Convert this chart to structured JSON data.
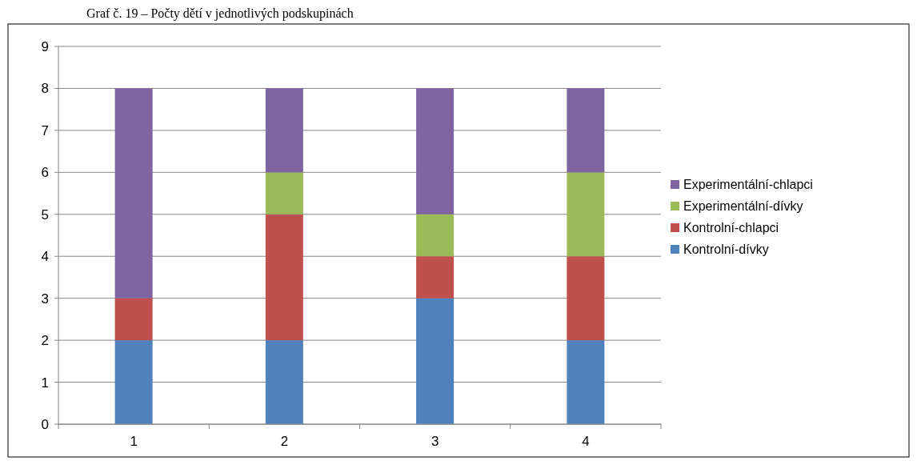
{
  "chart_data": {
    "type": "bar",
    "title": "Graf č. 19 – Počty dětí v jednotlivých podskupinách",
    "categories": [
      "1",
      "2",
      "3",
      "4"
    ],
    "stacked": true,
    "ylim": [
      0,
      9
    ],
    "yticks": [
      0,
      1,
      2,
      3,
      4,
      5,
      6,
      7,
      8,
      9
    ],
    "grid": "y",
    "legend": "right",
    "series": [
      {
        "name": "Kontrolní-dívky",
        "color": "#4f81bd",
        "values": [
          2,
          2,
          3,
          2
        ]
      },
      {
        "name": "Kontrolní-chlapci",
        "color": "#c0504d",
        "values": [
          1,
          3,
          1,
          2
        ]
      },
      {
        "name": "Experimentální-dívky",
        "color": "#9bbb59",
        "values": [
          0,
          1,
          1,
          2
        ]
      },
      {
        "name": "Experimentální-chlapci",
        "color": "#8064a2",
        "values": [
          5,
          2,
          3,
          2
        ]
      }
    ]
  }
}
